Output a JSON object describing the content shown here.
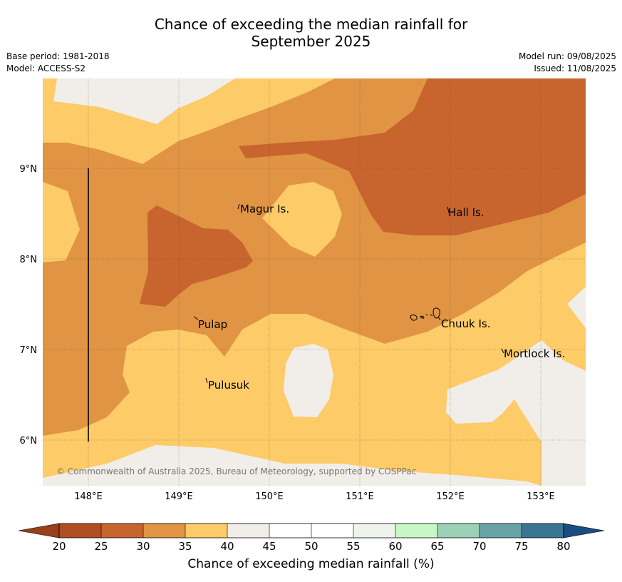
{
  "title_line1": "Chance of exceeding the median rainfall for",
  "title_line2": "September 2025",
  "base_period": "Base period: 1981-2018",
  "model": "Model: ACCESS-S2",
  "model_run": "Model run: 09/08/2025",
  "issued": "Issued: 11/08/2025",
  "copyright": "© Commonwealth of Australia 2025, Bureau of Meteorology, supported by COSPPac",
  "map": {
    "lon_ticks": [
      "148°E",
      "149°E",
      "150°E",
      "151°E",
      "152°E",
      "153°E"
    ],
    "lat_ticks": [
      "9°N",
      "8°N",
      "7°N",
      "6°N"
    ],
    "places": [
      "Magur Is.",
      "Hall Is.",
      "Pulap",
      "Chuuk Is.",
      "Mortlock Is.",
      "Pulusuk"
    ],
    "colors": {
      "c25": "#c8642e",
      "c30": "#e09444",
      "c35": "#fdcb67",
      "c40": "#f1ede8"
    }
  },
  "colorbar": {
    "ticks": [
      "20",
      "25",
      "30",
      "35",
      "40",
      "45",
      "50",
      "55",
      "60",
      "65",
      "70",
      "75",
      "80"
    ],
    "colors": [
      "#b04d25",
      "#c8642e",
      "#e09444",
      "#fdcb67",
      "#f1ede8",
      "#ffffff",
      "#ffffff",
      "#eef4ec",
      "#c8f7c6",
      "#9bd1b7",
      "#6aa3a6",
      "#3b7594"
    ],
    "under_color": "#983f1c",
    "over_color": "#1b4c82",
    "label": "Chance of exceeding median rainfall (%)"
  }
}
